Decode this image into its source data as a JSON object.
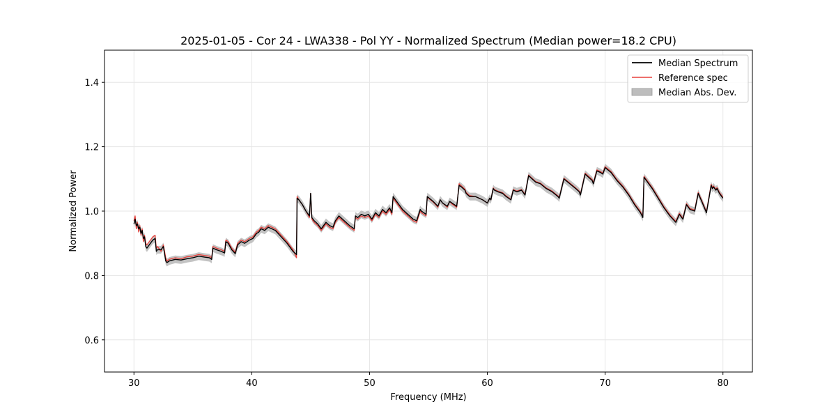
{
  "chart_data": {
    "type": "line",
    "title": "2025-01-05 - Cor 24 - LWA338 - Pol YY - Normalized Spectrum (Median power=18.2 CPU)",
    "xlabel": "Frequency (MHz)",
    "ylabel": "Normalized Power",
    "xlim": [
      27.5,
      82.5
    ],
    "ylim": [
      0.5,
      1.5
    ],
    "xticks": [
      30,
      40,
      50,
      60,
      70,
      80
    ],
    "xtick_labels": [
      "30",
      "40",
      "50",
      "60",
      "70",
      "80"
    ],
    "yticks": [
      0.6,
      0.8,
      1.0,
      1.2,
      1.4
    ],
    "ytick_labels": [
      "0.6",
      "0.8",
      "1.0",
      "1.2",
      "1.4"
    ],
    "grid": true,
    "legend_position": "top-right",
    "legend": [
      "Median Spectrum",
      "Reference spec",
      "Median Abs. Dev."
    ],
    "colors": {
      "median": "#000000",
      "reference": "#e8413c",
      "mad": "#bdbdbd"
    },
    "mad_halfwidth": 0.012,
    "series": [
      {
        "name": "Median Spectrum",
        "x": [
          30.0,
          30.1,
          30.2,
          30.3,
          30.4,
          30.5,
          30.6,
          30.7,
          30.8,
          30.9,
          31.0,
          31.1,
          31.3,
          31.6,
          31.8,
          31.9,
          32.0,
          32.3,
          32.5,
          32.7,
          32.8,
          33.0,
          33.5,
          34.0,
          34.5,
          35.0,
          35.5,
          36.0,
          36.4,
          36.6,
          36.7,
          37.0,
          37.4,
          37.7,
          37.8,
          38.0,
          38.3,
          38.6,
          38.8,
          39.1,
          39.4,
          39.8,
          40.1,
          40.4,
          40.6,
          40.8,
          41.1,
          41.4,
          41.7,
          42.0,
          42.5,
          43.0,
          43.5,
          43.8,
          43.85,
          44.0,
          44.3,
          44.6,
          44.9,
          45.0,
          45.1,
          45.3,
          45.6,
          45.9,
          46.1,
          46.3,
          46.6,
          46.9,
          47.1,
          47.4,
          47.7,
          48.0,
          48.3,
          48.7,
          48.8,
          49.0,
          49.3,
          49.6,
          49.9,
          50.2,
          50.5,
          50.8,
          51.1,
          51.4,
          51.7,
          51.9,
          52.0,
          52.2,
          52.5,
          52.8,
          53.1,
          53.4,
          53.7,
          54.0,
          54.3,
          54.4,
          54.6,
          54.8,
          54.9,
          55.0,
          55.4,
          55.8,
          56.0,
          56.2,
          56.6,
          56.8,
          57.0,
          57.4,
          57.6,
          57.8,
          58.1,
          58.2,
          58.5,
          59.0,
          59.3,
          59.6,
          60.0,
          60.2,
          60.3,
          60.5,
          60.6,
          60.9,
          61.3,
          61.6,
          62.0,
          62.2,
          62.5,
          62.9,
          63.2,
          63.5,
          63.8,
          64.1,
          64.5,
          65.0,
          65.5,
          66.0,
          66.1,
          66.5,
          67.0,
          67.5,
          67.8,
          67.9,
          68.3,
          68.6,
          68.9,
          69.0,
          69.3,
          69.6,
          69.8,
          70.0,
          70.5,
          71.0,
          71.5,
          72.0,
          72.5,
          73.0,
          73.2,
          73.3,
          73.6,
          74.0,
          74.5,
          75.0,
          75.5,
          76.0,
          76.3,
          76.6,
          76.9,
          77.2,
          77.6,
          77.9,
          78.2,
          78.6,
          79.0,
          79.1,
          79.2,
          79.4,
          79.5,
          79.7,
          79.9,
          80.0
        ],
        "values": [
          0.96,
          0.975,
          0.955,
          0.96,
          0.945,
          0.95,
          0.93,
          0.94,
          0.915,
          0.92,
          0.89,
          0.885,
          0.895,
          0.91,
          0.915,
          0.875,
          0.88,
          0.88,
          0.89,
          0.845,
          0.84,
          0.845,
          0.85,
          0.848,
          0.852,
          0.855,
          0.86,
          0.857,
          0.855,
          0.85,
          0.885,
          0.88,
          0.875,
          0.87,
          0.905,
          0.9,
          0.88,
          0.868,
          0.895,
          0.905,
          0.9,
          0.91,
          0.915,
          0.93,
          0.935,
          0.945,
          0.94,
          0.95,
          0.945,
          0.94,
          0.92,
          0.9,
          0.875,
          0.865,
          1.04,
          1.035,
          1.02,
          1.0,
          0.985,
          1.055,
          0.98,
          0.97,
          0.96,
          0.945,
          0.955,
          0.965,
          0.955,
          0.95,
          0.97,
          0.985,
          0.975,
          0.965,
          0.955,
          0.945,
          0.985,
          0.98,
          0.99,
          0.985,
          0.99,
          0.975,
          0.995,
          0.985,
          1.005,
          0.995,
          1.01,
          0.995,
          1.045,
          1.035,
          1.02,
          1.005,
          0.995,
          0.985,
          0.975,
          0.97,
          1.005,
          1.0,
          0.995,
          0.99,
          1.045,
          1.042,
          1.03,
          1.015,
          1.035,
          1.025,
          1.015,
          1.03,
          1.025,
          1.015,
          1.08,
          1.075,
          1.065,
          1.055,
          1.045,
          1.045,
          1.04,
          1.035,
          1.025,
          1.04,
          1.035,
          1.07,
          1.065,
          1.06,
          1.055,
          1.045,
          1.035,
          1.065,
          1.06,
          1.065,
          1.05,
          1.11,
          1.1,
          1.09,
          1.085,
          1.07,
          1.06,
          1.045,
          1.04,
          1.1,
          1.085,
          1.07,
          1.06,
          1.05,
          1.115,
          1.105,
          1.095,
          1.085,
          1.125,
          1.12,
          1.115,
          1.135,
          1.12,
          1.095,
          1.075,
          1.05,
          1.02,
          0.995,
          0.98,
          1.105,
          1.09,
          1.07,
          1.04,
          1.01,
          0.985,
          0.965,
          0.99,
          0.975,
          1.02,
          1.005,
          1.0,
          1.055,
          1.03,
          0.995,
          1.08,
          1.07,
          1.075,
          1.065,
          1.07,
          1.055,
          1.045,
          1.04
        ]
      },
      {
        "name": "Reference spec",
        "x": [
          30.0,
          30.1,
          30.2,
          30.3,
          30.4,
          30.5,
          30.6,
          30.7,
          30.8,
          30.9,
          31.0,
          31.1,
          31.3,
          31.6,
          31.8,
          31.9,
          32.0,
          32.3,
          32.5,
          32.7,
          32.8,
          33.0,
          33.5,
          34.0,
          34.5,
          35.0,
          35.5,
          36.0,
          36.4,
          36.6,
          36.7,
          37.0,
          37.4,
          37.7,
          37.8,
          38.0,
          38.3,
          38.6,
          38.8,
          39.1,
          39.4,
          39.8,
          40.1,
          40.4,
          40.6,
          40.8,
          41.1,
          41.4,
          41.7,
          42.0,
          42.5,
          43.0,
          43.5,
          43.8,
          43.85,
          44.0,
          44.3,
          44.6,
          44.9,
          45.0,
          45.1,
          45.3,
          45.6,
          45.9,
          46.1,
          46.3,
          46.6,
          46.9,
          47.1,
          47.4,
          47.7,
          48.0,
          48.3,
          48.7,
          48.8,
          49.0,
          49.3,
          49.6,
          49.9,
          50.2,
          50.5,
          50.8,
          51.1,
          51.4,
          51.7,
          51.9,
          52.0,
          52.2,
          52.5,
          52.8,
          53.1,
          53.4,
          53.7,
          54.0,
          54.3,
          54.4,
          54.6,
          54.8,
          54.9,
          55.0,
          55.4,
          55.8,
          56.0,
          56.2,
          56.6,
          56.8,
          57.0,
          57.4,
          57.6,
          57.8,
          58.1,
          58.2,
          58.5,
          59.0,
          59.3,
          59.6,
          60.0,
          60.2,
          60.3,
          60.5,
          60.6,
          60.9,
          61.3,
          61.6,
          62.0,
          62.2,
          62.5,
          62.9,
          63.2,
          63.5,
          63.8,
          64.1,
          64.5,
          65.0,
          65.5,
          66.0,
          66.1,
          66.5,
          67.0,
          67.5,
          67.8,
          67.9,
          68.3,
          68.6,
          68.9,
          69.0,
          69.3,
          69.6,
          69.8,
          70.0,
          70.5,
          71.0,
          71.5,
          72.0,
          72.5,
          73.0,
          73.2,
          73.3,
          73.6,
          74.0,
          74.5,
          75.0,
          75.5,
          76.0,
          76.3,
          76.6,
          76.9,
          77.2,
          77.6,
          77.9,
          78.2,
          78.6,
          79.0,
          79.1,
          79.2,
          79.4,
          79.5,
          79.7,
          79.9,
          80.0
        ],
        "values": [
          0.97,
          0.985,
          0.945,
          0.965,
          0.935,
          0.955,
          0.925,
          0.945,
          0.905,
          0.925,
          0.9,
          0.895,
          0.905,
          0.92,
          0.925,
          0.885,
          0.89,
          0.875,
          0.895,
          0.855,
          0.845,
          0.85,
          0.855,
          0.852,
          0.858,
          0.86,
          0.865,
          0.862,
          0.86,
          0.855,
          0.89,
          0.885,
          0.88,
          0.875,
          0.91,
          0.905,
          0.885,
          0.872,
          0.9,
          0.91,
          0.905,
          0.915,
          0.92,
          0.935,
          0.94,
          0.95,
          0.945,
          0.955,
          0.95,
          0.945,
          0.925,
          0.905,
          0.88,
          0.855,
          1.045,
          1.035,
          1.02,
          1.0,
          0.98,
          1.055,
          0.975,
          0.965,
          0.955,
          0.94,
          0.95,
          0.96,
          0.95,
          0.945,
          0.965,
          0.98,
          0.97,
          0.96,
          0.95,
          0.94,
          0.98,
          0.975,
          0.985,
          0.98,
          0.985,
          0.97,
          0.99,
          0.98,
          1.0,
          0.99,
          1.005,
          0.99,
          1.04,
          1.03,
          1.015,
          1.0,
          0.99,
          0.98,
          0.97,
          0.965,
          1.0,
          0.995,
          0.99,
          0.985,
          1.045,
          1.04,
          1.028,
          1.012,
          1.035,
          1.025,
          1.012,
          1.03,
          1.022,
          1.012,
          1.085,
          1.078,
          1.068,
          1.058,
          1.048,
          1.045,
          1.04,
          1.035,
          1.025,
          1.04,
          1.035,
          1.072,
          1.067,
          1.062,
          1.057,
          1.047,
          1.037,
          1.067,
          1.062,
          1.067,
          1.052,
          1.112,
          1.102,
          1.092,
          1.087,
          1.072,
          1.062,
          1.047,
          1.042,
          1.102,
          1.087,
          1.072,
          1.062,
          1.052,
          1.118,
          1.108,
          1.098,
          1.088,
          1.128,
          1.123,
          1.118,
          1.138,
          1.123,
          1.098,
          1.078,
          1.053,
          1.023,
          0.998,
          0.983,
          1.108,
          1.093,
          1.073,
          1.043,
          1.013,
          0.988,
          0.968,
          0.993,
          0.978,
          1.023,
          1.008,
          1.003,
          1.058,
          1.033,
          0.998,
          1.083,
          1.073,
          1.078,
          1.068,
          1.073,
          1.058,
          1.048,
          1.043
        ]
      }
    ]
  }
}
